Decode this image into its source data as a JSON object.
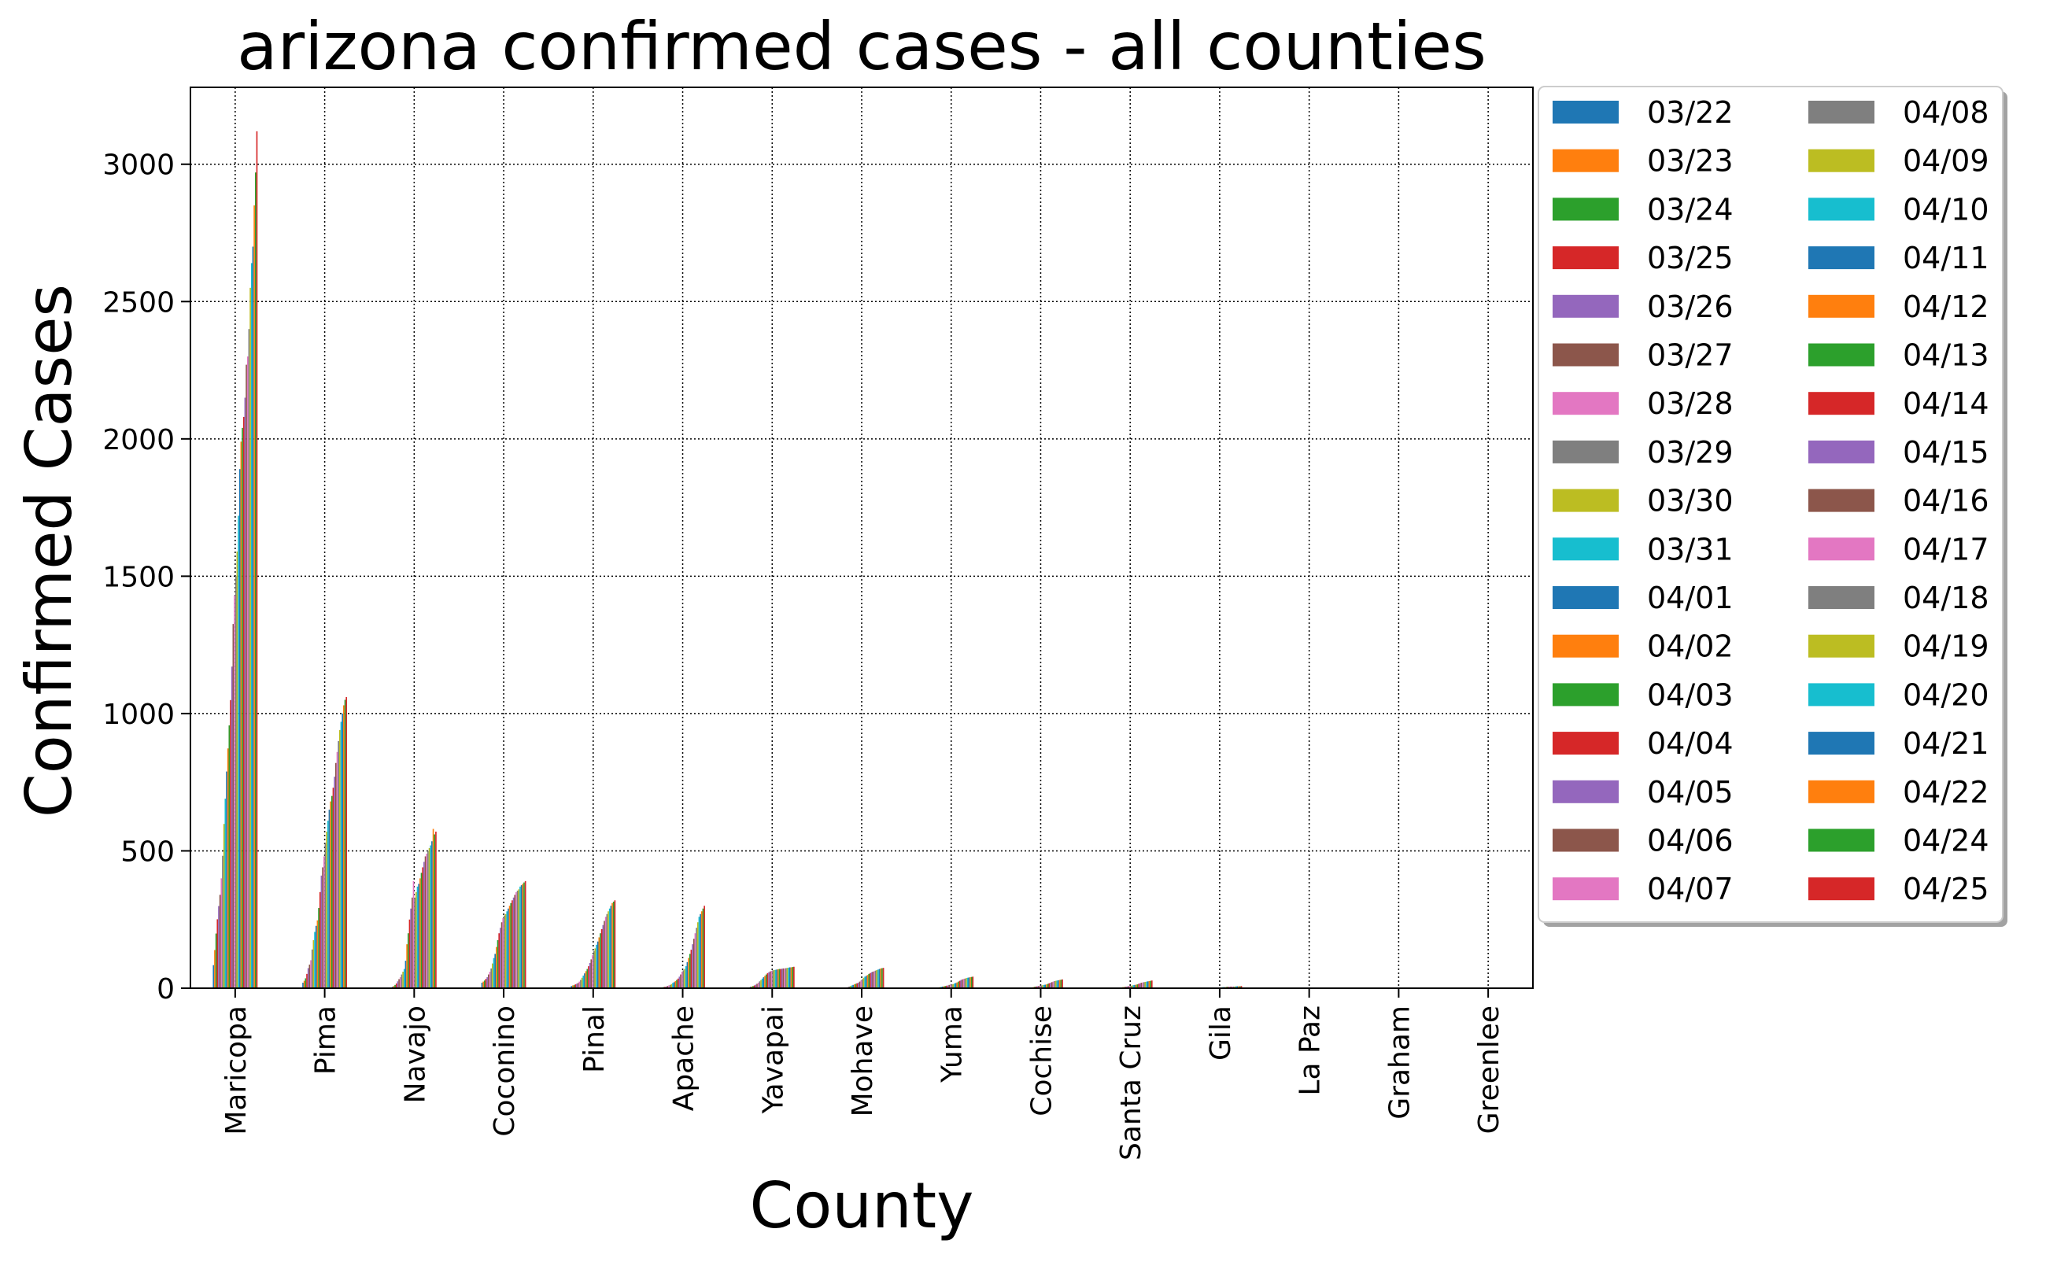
{
  "chart_data": {
    "type": "bar",
    "title": "arizona confirmed cases - all counties",
    "xlabel": "County",
    "ylabel": "Confirmed Cases",
    "ylim": [
      0,
      3280
    ],
    "yticks": [
      0,
      500,
      1000,
      1500,
      2000,
      2500,
      3000
    ],
    "grid": true,
    "legend_position": "outside-right",
    "legend_columns": 2,
    "categories": [
      "Maricopa",
      "Pima",
      "Navajo",
      "Coconino",
      "Pinal",
      "Apache",
      "Yavapai",
      "Mohave",
      "Yuma",
      "Cochise",
      "Santa Cruz",
      "Gila",
      "La Paz",
      "Graham",
      "Greenlee"
    ],
    "series": [
      {
        "name": "03/22",
        "color": "#1f77b4",
        "values": [
          84,
          20,
          5,
          20,
          8,
          2,
          5,
          1,
          1,
          0,
          1,
          0,
          0,
          0,
          0
        ]
      },
      {
        "name": "03/23",
        "color": "#ff7f0e",
        "values": [
          139,
          27,
          8,
          24,
          10,
          3,
          6,
          1,
          1,
          0,
          1,
          0,
          0,
          0,
          0
        ]
      },
      {
        "name": "03/24",
        "color": "#2ca02c",
        "values": [
          199,
          36,
          12,
          28,
          11,
          4,
          8,
          2,
          1,
          0,
          1,
          0,
          0,
          0,
          0
        ]
      },
      {
        "name": "03/25",
        "color": "#d62728",
        "values": [
          251,
          52,
          17,
          34,
          14,
          5,
          10,
          2,
          1,
          1,
          1,
          0,
          0,
          0,
          0
        ]
      },
      {
        "name": "03/26",
        "color": "#9467bd",
        "values": [
          299,
          73,
          25,
          40,
          16,
          6,
          13,
          3,
          2,
          1,
          1,
          0,
          0,
          0,
          0
        ]
      },
      {
        "name": "03/27",
        "color": "#8c564b",
        "values": [
          340,
          86,
          33,
          50,
          19,
          8,
          16,
          3,
          2,
          1,
          1,
          0,
          0,
          0,
          0
        ]
      },
      {
        "name": "03/28",
        "color": "#e377c2",
        "values": [
          400,
          102,
          40,
          60,
          24,
          10,
          20,
          4,
          2,
          1,
          2,
          0,
          0,
          0,
          0
        ]
      },
      {
        "name": "03/29",
        "color": "#7f7f7f",
        "values": [
          482,
          141,
          50,
          72,
          30,
          12,
          25,
          6,
          3,
          2,
          2,
          1,
          0,
          0,
          0
        ]
      },
      {
        "name": "03/30",
        "color": "#bcbd22",
        "values": [
          598,
          175,
          60,
          90,
          38,
          15,
          30,
          8,
          4,
          2,
          2,
          1,
          0,
          0,
          0
        ]
      },
      {
        "name": "03/31",
        "color": "#17becf",
        "values": [
          690,
          205,
          70,
          110,
          46,
          19,
          35,
          10,
          5,
          3,
          3,
          1,
          0,
          0,
          0
        ]
      },
      {
        "name": "04/01",
        "color": "#1f77b4",
        "values": [
          789,
          227,
          100,
          125,
          54,
          22,
          40,
          12,
          6,
          3,
          3,
          1,
          0,
          0,
          0
        ]
      },
      {
        "name": "04/02",
        "color": "#ff7f0e",
        "values": [
          873,
          247,
          160,
          150,
          62,
          26,
          45,
          14,
          7,
          4,
          4,
          1,
          0,
          0,
          0
        ]
      },
      {
        "name": "04/03",
        "color": "#2ca02c",
        "values": [
          957,
          292,
          200,
          175,
          70,
          30,
          50,
          16,
          8,
          5,
          4,
          2,
          0,
          0,
          0
        ]
      },
      {
        "name": "04/04",
        "color": "#d62728",
        "values": [
          1049,
          350,
          250,
          200,
          80,
          35,
          55,
          18,
          9,
          6,
          5,
          2,
          0,
          0,
          0
        ]
      },
      {
        "name": "04/05",
        "color": "#9467bd",
        "values": [
          1171,
          410,
          290,
          220,
          92,
          42,
          58,
          20,
          10,
          7,
          6,
          2,
          0,
          0,
          0
        ]
      },
      {
        "name": "04/06",
        "color": "#8c564b",
        "values": [
          1326,
          440,
          330,
          240,
          105,
          50,
          61,
          24,
          12,
          8,
          7,
          2,
          1,
          0,
          0
        ]
      },
      {
        "name": "04/07",
        "color": "#e377c2",
        "values": [
          1430,
          480,
          390,
          255,
          120,
          60,
          63,
          28,
          13,
          9,
          8,
          3,
          1,
          0,
          0
        ]
      },
      {
        "name": "04/08",
        "color": "#7f7f7f",
        "values": [
          1500,
          530,
          330,
          265,
          135,
          65,
          65,
          33,
          14,
          10,
          9,
          3,
          1,
          0,
          0
        ]
      },
      {
        "name": "04/09",
        "color": "#bcbd22",
        "values": [
          1590,
          570,
          350,
          270,
          145,
          70,
          66,
          38,
          15,
          11,
          10,
          3,
          1,
          1,
          0
        ]
      },
      {
        "name": "04/10",
        "color": "#17becf",
        "values": [
          1720,
          610,
          370,
          280,
          158,
          80,
          67,
          42,
          17,
          12,
          11,
          4,
          1,
          1,
          0
        ]
      },
      {
        "name": "04/11",
        "color": "#1f77b4",
        "values": [
          1890,
          650,
          380,
          290,
          170,
          95,
          68,
          45,
          19,
          13,
          12,
          4,
          1,
          1,
          0
        ]
      },
      {
        "name": "04/12",
        "color": "#ff7f0e",
        "values": [
          1990,
          680,
          400,
          300,
          185,
          110,
          69,
          48,
          21,
          14,
          13,
          4,
          1,
          1,
          0
        ]
      },
      {
        "name": "04/13",
        "color": "#2ca02c",
        "values": [
          2040,
          700,
          420,
          310,
          200,
          125,
          70,
          52,
          24,
          16,
          14,
          5,
          1,
          1,
          0
        ]
      },
      {
        "name": "04/14",
        "color": "#d62728",
        "values": [
          2080,
          730,
          440,
          320,
          215,
          140,
          70,
          55,
          27,
          18,
          16,
          5,
          2,
          1,
          0
        ]
      },
      {
        "name": "04/15",
        "color": "#9467bd",
        "values": [
          2150,
          770,
          460,
          330,
          230,
          160,
          71,
          58,
          30,
          20,
          18,
          5,
          2,
          1,
          1
        ]
      },
      {
        "name": "04/16",
        "color": "#8c564b",
        "values": [
          2270,
          820,
          480,
          340,
          245,
          180,
          72,
          60,
          32,
          22,
          20,
          6,
          2,
          1,
          1
        ]
      },
      {
        "name": "04/17",
        "color": "#e377c2",
        "values": [
          2300,
          860,
          490,
          350,
          260,
          200,
          72,
          62,
          34,
          24,
          21,
          6,
          2,
          1,
          1
        ]
      },
      {
        "name": "04/18",
        "color": "#7f7f7f",
        "values": [
          2400,
          900,
          500,
          355,
          270,
          220,
          73,
          64,
          35,
          26,
          22,
          6,
          2,
          1,
          1
        ]
      },
      {
        "name": "04/19",
        "color": "#bcbd22",
        "values": [
          2550,
          940,
          510,
          360,
          280,
          240,
          74,
          66,
          37,
          27,
          23,
          6,
          2,
          1,
          1
        ]
      },
      {
        "name": "04/20",
        "color": "#17becf",
        "values": [
          2640,
          970,
          520,
          370,
          290,
          260,
          75,
          68,
          38,
          28,
          24,
          7,
          2,
          1,
          1
        ]
      },
      {
        "name": "04/21",
        "color": "#1f77b4",
        "values": [
          2700,
          1000,
          535,
          375,
          300,
          270,
          76,
          70,
          39,
          29,
          25,
          7,
          2,
          1,
          1
        ]
      },
      {
        "name": "04/22",
        "color": "#ff7f0e",
        "values": [
          2850,
          1030,
          580,
          380,
          310,
          280,
          76,
          72,
          40,
          30,
          26,
          7,
          2,
          1,
          1
        ]
      },
      {
        "name": "04/24",
        "color": "#2ca02c",
        "values": [
          2970,
          1050,
          560,
          385,
          315,
          290,
          77,
          73,
          41,
          31,
          27,
          7,
          2,
          1,
          1
        ]
      },
      {
        "name": "04/25",
        "color": "#d62728",
        "values": [
          3120,
          1060,
          570,
          390,
          320,
          300,
          78,
          74,
          42,
          32,
          28,
          8,
          2,
          1,
          1
        ]
      }
    ]
  }
}
